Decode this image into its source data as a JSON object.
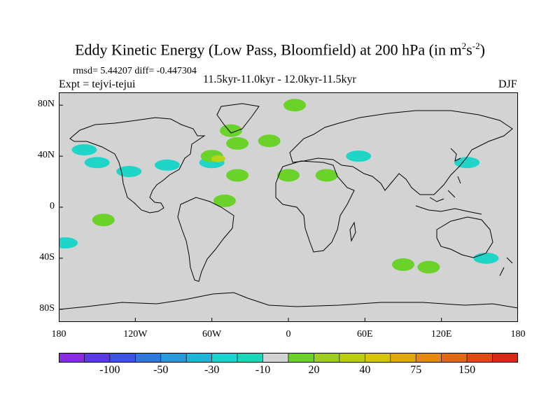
{
  "title": {
    "main": "Eddy Kinetic Energy (Low Pass, Bloomfield) at 200 hPa (in m",
    "exp1": "2",
    "mid": "s",
    "exp2": "-2",
    "end": ")"
  },
  "stats": "rmsd= 5.44207 diff= -0.447304",
  "experiment": "Expt = tejvi-tejui",
  "period": "11.5kyr-11.0kyr - 12.0kyr-11.5kyr",
  "season": "DJF",
  "axes": {
    "y_ticks": [
      {
        "label": "80N",
        "lat": 80
      },
      {
        "label": "40N",
        "lat": 40
      },
      {
        "label": "0",
        "lat": 0
      },
      {
        "label": "40S",
        "lat": -40
      },
      {
        "label": "80S",
        "lat": -80
      }
    ],
    "x_ticks": [
      {
        "label": "180",
        "lon": -180
      },
      {
        "label": "120W",
        "lon": -120
      },
      {
        "label": "60W",
        "lon": -60
      },
      {
        "label": "0",
        "lon": 0
      },
      {
        "label": "60E",
        "lon": 60
      },
      {
        "label": "120E",
        "lon": 120
      },
      {
        "label": "180",
        "lon": 180
      }
    ],
    "lat_range": [
      -90,
      90
    ],
    "lon_range": [
      -180,
      180
    ]
  },
  "colors": {
    "background": "#d3d3d3",
    "coast": "#000000",
    "neg_small": "#1fd5c8",
    "pos_small": "#6bd22a",
    "pos_medium": "#b5d41a"
  },
  "colorbar": {
    "colors": [
      "#8a2be2",
      "#5b3ae0",
      "#3d55dc",
      "#2f78dc",
      "#2898d8",
      "#1fb4d8",
      "#1fd0d0",
      "#1fd5b8",
      "#d3d3d3",
      "#6bd22a",
      "#9ccd20",
      "#bccd16",
      "#d6c40f",
      "#e0a810",
      "#e28a12",
      "#e06a14",
      "#dc4a16",
      "#d62a18"
    ],
    "labels": [
      "-100",
      "-50",
      "-30",
      "-10",
      "20",
      "40",
      "75",
      "150"
    ],
    "label_boundaries": [
      2,
      4,
      6,
      8,
      10,
      12,
      14,
      16
    ]
  },
  "anomalies": [
    {
      "type": "neg_small",
      "lon": -160,
      "lat": 45
    },
    {
      "type": "neg_small",
      "lon": -150,
      "lat": 35
    },
    {
      "type": "neg_small",
      "lon": -125,
      "lat": 28
    },
    {
      "type": "neg_small",
      "lon": -95,
      "lat": 33
    },
    {
      "type": "neg_small",
      "lon": -175,
      "lat": -28
    },
    {
      "type": "neg_small",
      "lon": -60,
      "lat": 35
    },
    {
      "type": "neg_small",
      "lon": 55,
      "lat": 40
    },
    {
      "type": "neg_small",
      "lon": 140,
      "lat": 35
    },
    {
      "type": "neg_small",
      "lon": 155,
      "lat": -40
    },
    {
      "type": "pos_small",
      "lon": -40,
      "lat": 50
    },
    {
      "type": "pos_small",
      "lon": -15,
      "lat": 52
    },
    {
      "type": "pos_small",
      "lon": -60,
      "lat": 40
    },
    {
      "type": "pos_small",
      "lon": -45,
      "lat": 60
    },
    {
      "type": "pos_small",
      "lon": 5,
      "lat": 80
    },
    {
      "type": "pos_small",
      "lon": -50,
      "lat": 5
    },
    {
      "type": "pos_small",
      "lon": -145,
      "lat": -10
    },
    {
      "type": "pos_small",
      "lon": -40,
      "lat": 25
    },
    {
      "type": "pos_small",
      "lon": 0,
      "lat": 25
    },
    {
      "type": "pos_small",
      "lon": 30,
      "lat": 25
    },
    {
      "type": "pos_small",
      "lon": 90,
      "lat": -45
    },
    {
      "type": "pos_small",
      "lon": 110,
      "lat": -47
    },
    {
      "type": "pos_medium",
      "lon": -55,
      "lat": 38
    }
  ]
}
